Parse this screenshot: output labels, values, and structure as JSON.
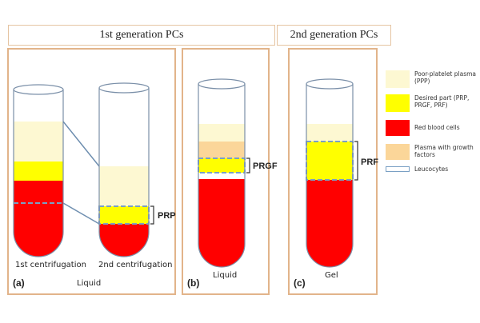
{
  "headers": {
    "first_gen": "1st generation PCs",
    "second_gen": "2nd generation PCs"
  },
  "panels": {
    "a": {
      "letter": "(a)",
      "state": "Liquid",
      "tube1_label": "1st centrifugation",
      "tube2_label": "2nd centrifugation",
      "product": "PRP"
    },
    "b": {
      "letter": "(b)",
      "state": "Liquid",
      "product": "PRGF"
    },
    "c": {
      "letter": "(c)",
      "state": "Gel",
      "product": "PRF"
    }
  },
  "legend": [
    {
      "text": "Poor-platelet plasma (PPP)",
      "swatch": "#fdf8d2",
      "kind": "fill"
    },
    {
      "text": "Desired part (PRP, PRGF, PRF)",
      "swatch": "#ffff00",
      "kind": "fill"
    },
    {
      "text": "Red blood cells",
      "swatch": "#ff0000",
      "kind": "fill"
    },
    {
      "text": "Plasma with growth factors",
      "swatch": "#fbd699",
      "kind": "fill"
    },
    {
      "text": "Leucocytes",
      "swatch": "#7aa0c4",
      "kind": "line"
    }
  ],
  "colors": {
    "ppp": "#fdf8d2",
    "desired": "#ffff00",
    "rbc": "#ff0000",
    "growth": "#fbd699",
    "leuco": "#7aa0c4",
    "frame": "#e2b48a"
  }
}
